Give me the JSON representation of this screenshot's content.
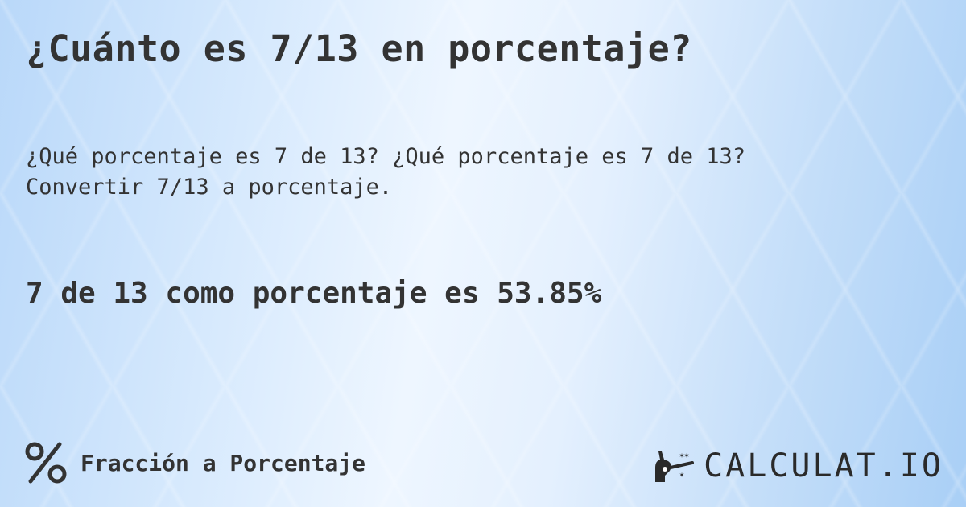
{
  "title": "¿Cuánto es 7/13 en porcentaje?",
  "description_line1": "¿Qué porcentaje es 7 de 13? ¿Qué porcentaje es 7 de 13?",
  "description_line2": "Convertir 7/13 a porcentaje.",
  "result": "7 de 13 como porcentaje es 53.85%",
  "footer": {
    "icon": "percent-icon",
    "label": "Fracción a Porcentaje"
  },
  "logo": {
    "text": "CALCULAT.IO",
    "icon": "magic-hand-icon"
  }
}
